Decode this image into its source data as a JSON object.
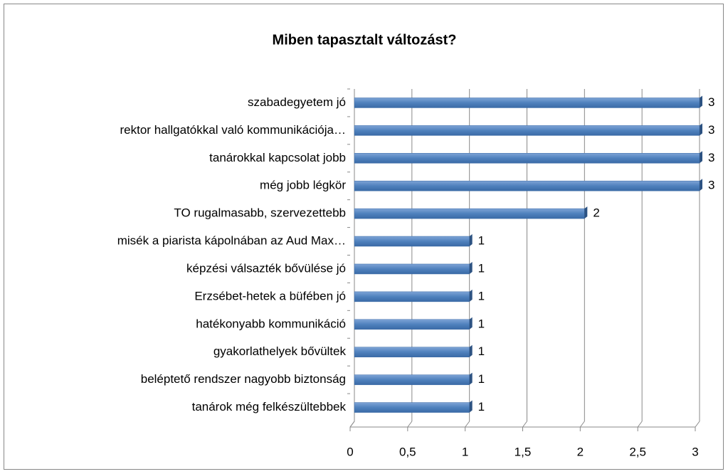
{
  "chart_data": {
    "type": "bar",
    "orientation": "horizontal",
    "title": "Miben tapasztalt változást?",
    "categories": [
      "szabadegyetem jó",
      "rektor hallgatókkal való kommunikációja…",
      "tanárokkal kapcsolat jobb",
      "még jobb légkör",
      "TO rugalmasabb, szervezettebb",
      "misék a piarista kápolnában az Aud Max…",
      "képzési válsazték bővülése jó",
      "Erzsébet-hetek a büfében jó",
      "hatékonyabb kommunikáció",
      "gyakorlathelyek bővültek",
      "beléptető rendszer nagyobb biztonság",
      "tanárok még felkészültebbek"
    ],
    "values": [
      3,
      3,
      3,
      3,
      2,
      1,
      1,
      1,
      1,
      1,
      1,
      1
    ],
    "color": "#4f81bd",
    "xlim": [
      0,
      3
    ],
    "xticks": [
      0,
      {
        "value": 0.5,
        "label": "0,5"
      },
      1,
      {
        "value": 1.5,
        "label": "1,5"
      },
      2,
      {
        "value": 2.5,
        "label": "2,5"
      },
      3
    ],
    "grid": true
  }
}
